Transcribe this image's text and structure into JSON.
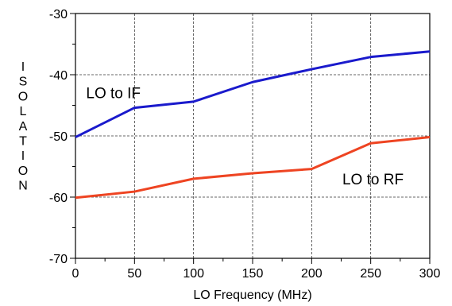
{
  "chart_data": {
    "type": "line",
    "xlabel": "LO Frequency (MHz)",
    "ylabel": "ISOLATION",
    "xlim": [
      0,
      300
    ],
    "ylim": [
      -70,
      -30
    ],
    "x_ticks": [
      0,
      50,
      100,
      150,
      200,
      250,
      300
    ],
    "y_ticks": [
      -70,
      -60,
      -50,
      -40,
      -30
    ],
    "grid": true,
    "series": [
      {
        "name": "LO to IF",
        "color": "#1a1acc",
        "x": [
          0,
          50,
          100,
          150,
          200,
          250,
          300
        ],
        "values": [
          -50.2,
          -45.4,
          -44.4,
          -41.2,
          -39.1,
          -37.1,
          -36.2
        ]
      },
      {
        "name": "LO to RF",
        "color": "#ee4422",
        "x": [
          0,
          50,
          100,
          150,
          200,
          250,
          300
        ],
        "values": [
          -60.1,
          -59.1,
          -57.0,
          -56.1,
          -55.4,
          -51.2,
          -50.2
        ]
      }
    ],
    "annotations": [
      {
        "text": "LO to IF",
        "x": 9,
        "y": -43.8
      },
      {
        "text": "LO to RF",
        "x": 226,
        "y": -57.9
      }
    ]
  }
}
